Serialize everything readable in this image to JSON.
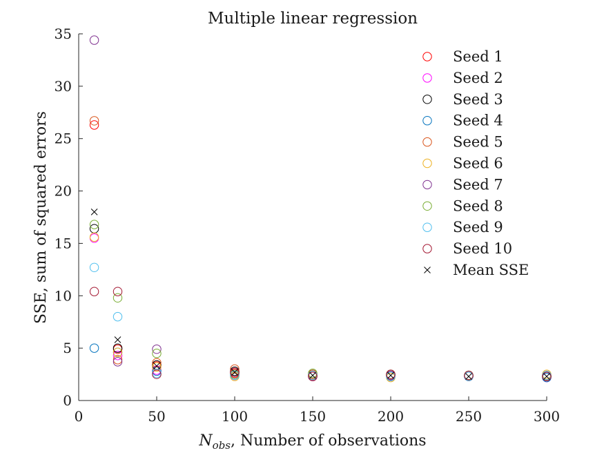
{
  "chart_data": {
    "type": "scatter",
    "title": "Multiple linear regression",
    "xlabel": {
      "symbol": "N",
      "subscript": "obs",
      "text": ", Number of observations"
    },
    "ylabel": "SSE, sum of squared errors",
    "xlim": [
      0,
      300
    ],
    "ylim": [
      0,
      35
    ],
    "xticks": [
      0,
      50,
      100,
      150,
      200,
      250,
      300
    ],
    "yticks": [
      0,
      5,
      10,
      15,
      20,
      25,
      30,
      35
    ],
    "x": [
      10,
      25,
      50,
      100,
      150,
      200,
      250,
      300
    ],
    "grid": false,
    "legend_position": "top-right",
    "series": [
      {
        "name": "Seed 1",
        "color": "#ff0000",
        "marker": "circle",
        "values": [
          26.3,
          4.9,
          3.3,
          2.6,
          2.4,
          2.3,
          2.3,
          2.3
        ]
      },
      {
        "name": "Seed 2",
        "color": "#ff00ff",
        "marker": "circle",
        "values": [
          15.5,
          4.3,
          2.9,
          2.4,
          2.3,
          2.3,
          2.3,
          2.2
        ]
      },
      {
        "name": "Seed 3",
        "color": "#000000",
        "marker": "circle",
        "values": [
          16.4,
          5.0,
          3.4,
          2.8,
          2.5,
          2.4,
          2.3,
          2.3
        ]
      },
      {
        "name": "Seed 4",
        "color": "#0072bd",
        "marker": "circle",
        "values": [
          5.0,
          4.6,
          2.8,
          2.5,
          2.4,
          2.3,
          2.4,
          2.2
        ]
      },
      {
        "name": "Seed 5",
        "color": "#d95319",
        "marker": "circle",
        "values": [
          26.7,
          3.9,
          3.6,
          3.0,
          2.5,
          2.5,
          2.3,
          2.4
        ]
      },
      {
        "name": "Seed 6",
        "color": "#edb120",
        "marker": "circle",
        "values": [
          15.6,
          4.6,
          3.2,
          2.3,
          2.4,
          2.2,
          2.4,
          2.5
        ]
      },
      {
        "name": "Seed 7",
        "color": "#7e2f8e",
        "marker": "circle",
        "values": [
          34.4,
          3.7,
          4.9,
          2.7,
          2.3,
          2.4,
          2.3,
          2.3
        ]
      },
      {
        "name": "Seed 8",
        "color": "#77ac30",
        "marker": "circle",
        "values": [
          16.8,
          9.8,
          4.5,
          2.5,
          2.6,
          2.5,
          2.4,
          2.3
        ]
      },
      {
        "name": "Seed 9",
        "color": "#4dbeee",
        "marker": "circle",
        "values": [
          12.7,
          8.0,
          2.6,
          2.4,
          2.4,
          2.3,
          2.3,
          2.4
        ]
      },
      {
        "name": "Seed 10",
        "color": "#a2142f",
        "marker": "circle",
        "values": [
          10.4,
          10.4,
          2.5,
          2.7,
          2.3,
          2.5,
          2.4,
          2.3
        ]
      },
      {
        "name": "Mean SSE",
        "color": "#000000",
        "marker": "cross",
        "values": [
          18.0,
          5.8,
          3.3,
          2.7,
          2.4,
          2.4,
          2.3,
          2.3
        ]
      }
    ]
  }
}
